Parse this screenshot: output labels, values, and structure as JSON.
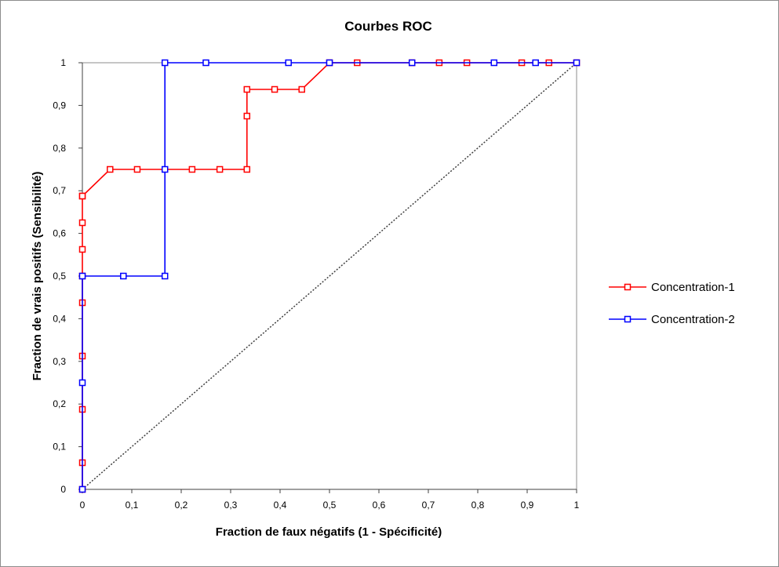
{
  "chart_data": {
    "type": "line",
    "title": "Courbes  ROC",
    "xlabel": "Fraction de faux négatifs (1 - Spécificité)",
    "ylabel": "Fraction de vrais positifs (Sensibilité)",
    "xlim": [
      0,
      1
    ],
    "ylim": [
      0,
      1
    ],
    "x_ticks": [
      "0",
      "0,1",
      "0,2",
      "0,3",
      "0,4",
      "0,5",
      "0,6",
      "0,7",
      "0,8",
      "0,9",
      "1"
    ],
    "y_ticks": [
      "0",
      "0,1",
      "0,2",
      "0,3",
      "0,4",
      "0,5",
      "0,6",
      "0,7",
      "0,8",
      "0,9",
      "1"
    ],
    "grid": "top-right frame lines only",
    "legend_position": "right",
    "reference_line": {
      "x": [
        0,
        1
      ],
      "y": [
        0,
        1
      ],
      "style": "dotted",
      "color": "#404040"
    },
    "series": [
      {
        "name": "Concentration-1",
        "color": "#ff0000",
        "x": [
          0,
          0,
          0,
          0,
          0,
          0,
          0,
          0,
          0,
          0,
          0.056,
          0.111,
          0.222,
          0.278,
          0.333,
          0.333,
          0.333,
          0.389,
          0.444,
          0.5,
          0.556,
          0.667,
          0.722,
          0.778,
          0.889,
          0.944,
          1
        ],
        "y": [
          0,
          0.0625,
          0.1875,
          0.3125,
          0.4375,
          0.5,
          0.5625,
          0.625,
          0.6875,
          0.6875,
          0.75,
          0.75,
          0.75,
          0.75,
          0.75,
          0.875,
          0.9375,
          0.9375,
          0.9375,
          1,
          1,
          1,
          1,
          1,
          1,
          1,
          1
        ]
      },
      {
        "name": "Concentration-2",
        "color": "#0000ff",
        "x": [
          0,
          0,
          0,
          0.083,
          0.167,
          0.167,
          0.167,
          0.25,
          0.417,
          0.5,
          0.667,
          0.833,
          0.917,
          1
        ],
        "y": [
          0,
          0.25,
          0.5,
          0.5,
          0.5,
          0.75,
          1,
          1,
          1,
          1,
          1,
          1,
          1,
          1
        ]
      }
    ]
  }
}
